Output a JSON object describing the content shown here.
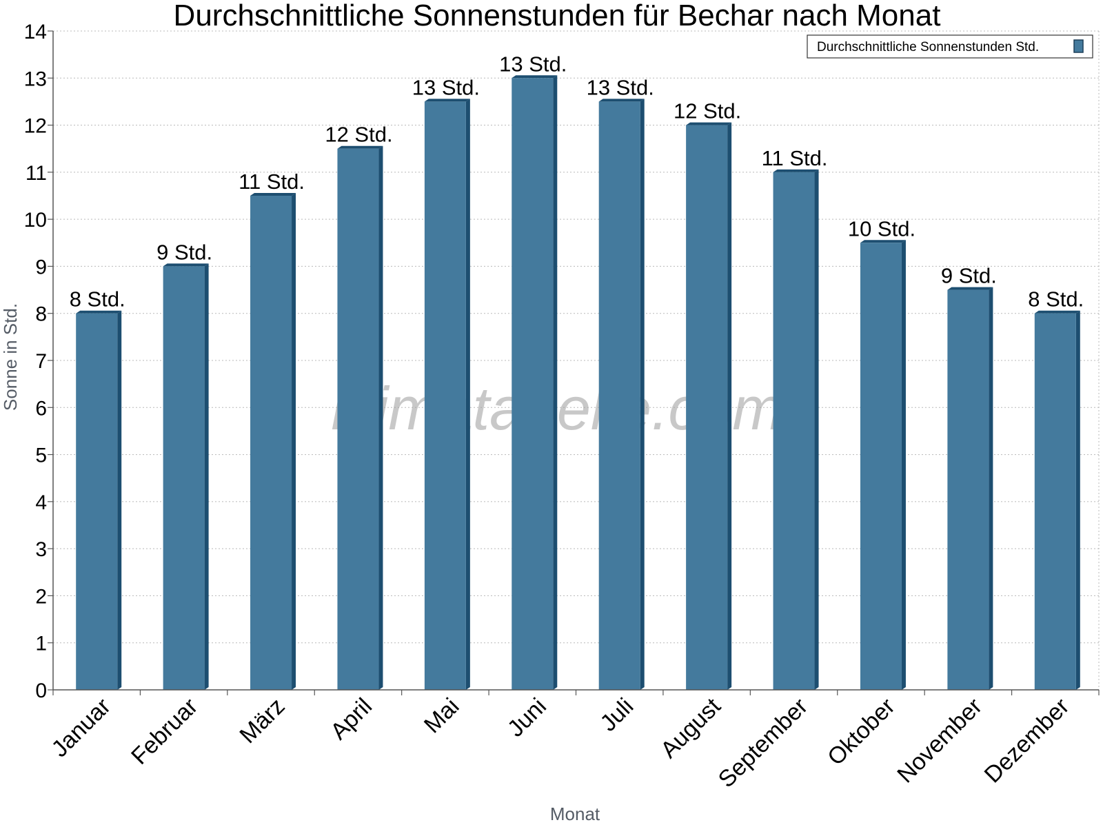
{
  "chart_data": {
    "type": "bar",
    "title": "Durchschnittliche Sonnenstunden für Bechar nach Monat",
    "xlabel": "Monat",
    "ylabel": "Sonne in Std.",
    "categories": [
      "Januar",
      "Februar",
      "März",
      "April",
      "Mai",
      "Juni",
      "Juli",
      "August",
      "September",
      "Oktober",
      "November",
      "Dezember"
    ],
    "series": [
      {
        "name": "Durchschnittliche Sonnenstunden Std.",
        "values": [
          8,
          9,
          10.5,
          11.5,
          12.5,
          13,
          12.5,
          12,
          11,
          9.5,
          8.5,
          8
        ],
        "labels": [
          "8 Std.",
          "9 Std.",
          "11 Std.",
          "12 Std.",
          "13 Std.",
          "13 Std.",
          "13 Std.",
          "12 Std.",
          "11 Std.",
          "10 Std.",
          "9 Std.",
          "8 Std."
        ]
      }
    ],
    "ylim": [
      0,
      14
    ],
    "yticks": [
      "0",
      "1",
      "2",
      "3",
      "4",
      "5",
      "6",
      "7",
      "8",
      "9",
      "10",
      "11",
      "12",
      "13",
      "14"
    ],
    "grid": true,
    "legend": "top-right",
    "bar_color": "#447a9d",
    "bar_side_color": "#1d4e70"
  },
  "watermark": "klimatabelle.com"
}
